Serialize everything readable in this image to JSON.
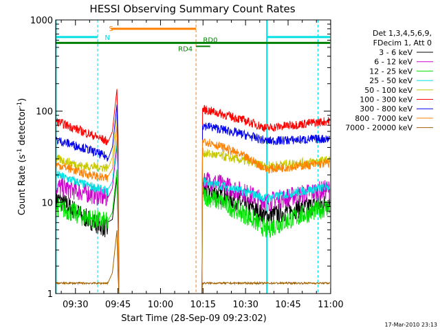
{
  "chart_data": {
    "type": "line",
    "title": "HESSI Observing Summary Count Rates",
    "xlabel": "Start Time (28-Sep-09 09:23:02)",
    "ylabel_main": "Count Rate (s",
    "ylabel_sup1": "-1",
    "ylabel_mid": " detector",
    "ylabel_sup2": "-1",
    "ylabel_end": ")",
    "yscale": "log",
    "ylim": [
      1,
      1000
    ],
    "xlim_minutes": [
      0,
      97
    ],
    "x_ticks": [
      {
        "label": "09:30",
        "minute": 6.97
      },
      {
        "label": "09:45",
        "minute": 21.97
      },
      {
        "label": "10:00",
        "minute": 36.97
      },
      {
        "label": "10:15",
        "minute": 51.97
      },
      {
        "label": "10:30",
        "minute": 66.97
      },
      {
        "label": "10:45",
        "minute": 81.97
      },
      {
        "label": "11:00",
        "minute": 96.97
      }
    ],
    "y_ticks": [
      {
        "label": "1",
        "value": 1
      },
      {
        "label": "10",
        "value": 10
      },
      {
        "label": "100",
        "value": 100
      },
      {
        "label": "1000",
        "value": 1000
      }
    ],
    "legend_header": [
      "Det 1,3,4,5,6,9,",
      "FDecim 1, Att 0"
    ],
    "series": [
      {
        "name": "3 - 6 keV",
        "color": "#000000",
        "pre": [
          11,
          7,
          5
        ],
        "post": [
          14,
          7,
          10
        ]
      },
      {
        "name": "6 - 12 keV",
        "color": "#cc00cc",
        "pre": [
          15,
          13,
          11
        ],
        "post": [
          18,
          10,
          14
        ]
      },
      {
        "name": "12 - 25 keV",
        "color": "#00e000",
        "pre": [
          9,
          7,
          6
        ],
        "post": [
          12,
          5,
          9
        ]
      },
      {
        "name": "25 - 50 keV",
        "color": "#00e0e0",
        "pre": [
          20,
          16,
          13
        ],
        "post": [
          17,
          11,
          15
        ]
      },
      {
        "name": "50 - 100 keV",
        "color": "#c8c800",
        "pre": [
          30,
          25,
          24
        ],
        "post": [
          35,
          25,
          29
        ]
      },
      {
        "name": "100 - 300 keV",
        "color": "#ff0000",
        "pre": [
          77,
          60,
          46
        ],
        "post": [
          105,
          65,
          78
        ]
      },
      {
        "name": "300 - 800 keV",
        "color": "#0000ee",
        "pre": [
          48,
          40,
          31
        ],
        "post": [
          70,
          47,
          50
        ]
      },
      {
        "name": "800 - 7000 keV",
        "color": "#ff8000",
        "pre": [
          26,
          21,
          18
        ],
        "post": [
          48,
          23,
          27
        ]
      },
      {
        "name": "7000 - 20000 keV",
        "color": "#a06000",
        "pre": [
          1.3,
          1.3,
          1.3
        ],
        "post": [
          1.3,
          1.3,
          1.3
        ]
      }
    ],
    "annotations": [
      {
        "label": "S",
        "color": "#ff8000"
      },
      {
        "label": "N",
        "color": "#00e0e0"
      },
      {
        "label": "RD0",
        "color": "#008000"
      },
      {
        "label": "RD4",
        "color": "#008000"
      }
    ],
    "flag_bars": [
      {
        "name": "SAA",
        "color": "#ff8000",
        "value": 800
      },
      {
        "name": "night",
        "color": "#00e0e0",
        "value": 650
      },
      {
        "name": "decimation",
        "color": "#008000",
        "value": 560
      }
    ],
    "footer_date": "17-Mar-2010 23:13"
  }
}
